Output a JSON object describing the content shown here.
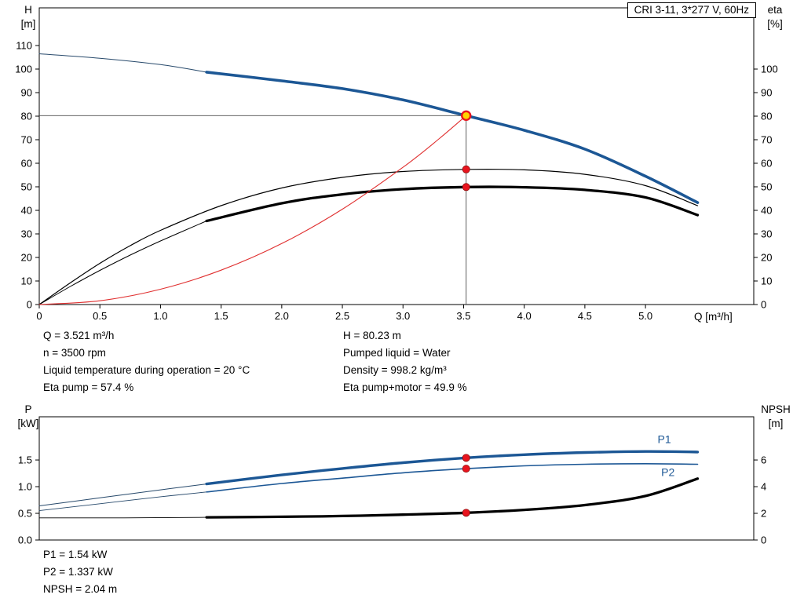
{
  "title_box": "CRI 3-11, 3*277 V, 60Hz",
  "annotations": {
    "top_left": [
      "Q = 3.521 m³/h",
      "n = 3500 rpm",
      "Liquid temperature during operation = 20 °C",
      "Eta pump = 57.4 %"
    ],
    "top_right": [
      "H = 80.23 m",
      "Pumped liquid = Water",
      "Density = 998.2 kg/m³",
      "Eta pump+motor = 49.9 %"
    ],
    "bottom": [
      "P1 = 1.54 kW",
      "P2 = 1.337 kW",
      "NPSH = 2.04 m"
    ]
  },
  "colors": {
    "curve_blue": "#1c5795",
    "curve_black": "#000000",
    "system_red": "#e03030",
    "marker_red": "#e8141e",
    "op_yellow": "#ffd400",
    "ref_line": "#4d4d4d"
  },
  "operating_point": {
    "Q": 3.521,
    "H": 80.23,
    "eta_pump": 57.4,
    "eta_pump_motor": 49.9,
    "P1": 1.54,
    "P2": 1.337,
    "NPSH": 2.04
  },
  "chart_data": [
    {
      "id": "top",
      "type": "line",
      "title": "CRI 3-11, 3*277 V, 60Hz",
      "axes": {
        "x_label": "Q [m³/h]",
        "left_label": [
          "H",
          "[m]"
        ],
        "right_label": [
          "eta",
          "[%]"
        ],
        "xlim": [
          0,
          5.893
        ],
        "left_ylim": [
          0,
          126
        ],
        "right_ylim": [
          0,
          126
        ],
        "xticks": [
          0,
          0.5,
          1,
          1.5,
          2,
          2.5,
          3,
          3.5,
          4,
          4.5,
          5
        ],
        "xtick_labels": [
          "0",
          "0.5",
          "1.0",
          "1.5",
          "2.0",
          "2.5",
          "3.0",
          "3.5",
          "4.0",
          "4.5",
          "5.0"
        ],
        "left_yticks": [
          0,
          10,
          20,
          30,
          40,
          50,
          60,
          70,
          80,
          90,
          100,
          110
        ],
        "left_ytick_labels": [
          "0",
          "10",
          "20",
          "30",
          "40",
          "50",
          "60",
          "70",
          "80",
          "90",
          "100",
          "110"
        ],
        "right_yticks": [
          0,
          10,
          20,
          30,
          40,
          50,
          60,
          70,
          80,
          90,
          100
        ],
        "right_ytick_labels": [
          "0",
          "10",
          "20",
          "30",
          "40",
          "50",
          "60",
          "70",
          "80",
          "90",
          "100"
        ]
      },
      "ref_lines": [
        {
          "dir": "h",
          "y": 80.23,
          "x0": 0,
          "x1": 3.521
        },
        {
          "dir": "v",
          "x": 3.521,
          "y0": 0,
          "y1": 80.23
        }
      ],
      "series": [
        {
          "name": "head-curve-extension",
          "axis": "left",
          "color": "#27496b",
          "width": 1,
          "points": [
            [
              0,
              106.5
            ],
            [
              0.5,
              104.6
            ],
            [
              1.0,
              101.9
            ],
            [
              1.38,
              98.7
            ]
          ]
        },
        {
          "name": "head-curve",
          "axis": "left",
          "color": "#1c5795",
          "width": 3.6,
          "points": [
            [
              1.38,
              98.7
            ],
            [
              2,
              95
            ],
            [
              2.5,
              91.7
            ],
            [
              3,
              86.9
            ],
            [
              3.521,
              80.23
            ],
            [
              4,
              74
            ],
            [
              4.5,
              66
            ],
            [
              5,
              54.5
            ],
            [
              5.43,
              43.3
            ]
          ]
        },
        {
          "name": "eta-pump-curve",
          "axis": "right",
          "color": "#000000",
          "width": 1.2,
          "points": [
            [
              0,
              0
            ],
            [
              0.25,
              9
            ],
            [
              0.5,
              17.5
            ],
            [
              0.75,
              25
            ],
            [
              1,
              31.5
            ],
            [
              1.5,
              42
            ],
            [
              2,
              49.5
            ],
            [
              2.5,
              54
            ],
            [
              3,
              56.5
            ],
            [
              3.521,
              57.4
            ],
            [
              4,
              57.2
            ],
            [
              4.5,
              55.3
            ],
            [
              5,
              50.5
            ],
            [
              5.43,
              42
            ]
          ]
        },
        {
          "name": "eta-pump-motor-extension",
          "axis": "right",
          "color": "#000000",
          "width": 1,
          "points": [
            [
              0,
              0
            ],
            [
              0.25,
              7.5
            ],
            [
              0.5,
              14.5
            ],
            [
              0.75,
              21
            ],
            [
              1,
              27
            ],
            [
              1.38,
              35.5
            ]
          ]
        },
        {
          "name": "eta-pump-motor-curve",
          "axis": "right",
          "color": "#000000",
          "width": 3.3,
          "points": [
            [
              1.38,
              35.5
            ],
            [
              2,
              43
            ],
            [
              2.5,
              46.8
            ],
            [
              3,
              49
            ],
            [
              3.521,
              49.9
            ],
            [
              4,
              49.8
            ],
            [
              4.5,
              48.7
            ],
            [
              5,
              45.5
            ],
            [
              5.43,
              38
            ]
          ]
        },
        {
          "name": "system-curve",
          "axis": "left",
          "color": "#e03030",
          "width": 1.1,
          "points": [
            [
              0,
              0
            ],
            [
              0.5,
              1.6
            ],
            [
              1,
              6.5
            ],
            [
              1.5,
              14.6
            ],
            [
              2,
              25.9
            ],
            [
              2.5,
              40.5
            ],
            [
              3,
              58.3
            ],
            [
              3.3,
              70.5
            ],
            [
              3.521,
              80.23
            ]
          ]
        }
      ],
      "markers": [
        {
          "x": 3.521,
          "y": 80.23,
          "axis": "left",
          "style": "op",
          "fill": "#ffd400",
          "stroke": "#e8141e"
        },
        {
          "x": 3.521,
          "y": 57.4,
          "axis": "right",
          "style": "dot",
          "fill": "#e8141e",
          "stroke": "#8f0f0f"
        },
        {
          "x": 3.521,
          "y": 49.9,
          "axis": "right",
          "style": "dot",
          "fill": "#e8141e",
          "stroke": "#8f0f0f"
        }
      ],
      "labels": []
    },
    {
      "id": "bottom",
      "type": "line",
      "title": "",
      "axes": {
        "x_label": "",
        "left_label": [
          "P",
          "[kW]"
        ],
        "right_label": [
          "NPSH",
          "[m]"
        ],
        "xlim": [
          0,
          5.893
        ],
        "left_ylim": [
          0,
          2.31
        ],
        "right_ylim": [
          0,
          9.24
        ],
        "xticks": [],
        "xtick_labels": [],
        "left_yticks": [
          0,
          0.5,
          1,
          1.5
        ],
        "left_ytick_labels": [
          "0.0",
          "0.5",
          "1.0",
          "1.5"
        ],
        "right_yticks": [
          0,
          2,
          4,
          6
        ],
        "right_ytick_labels": [
          "0",
          "2",
          "4",
          "6"
        ]
      },
      "ref_lines": [],
      "series": [
        {
          "name": "p1-curve-extension",
          "axis": "left",
          "color": "#27496b",
          "width": 1,
          "points": [
            [
              0,
              0.64
            ],
            [
              0.5,
              0.79
            ],
            [
              1,
              0.94
            ],
            [
              1.38,
              1.05
            ]
          ]
        },
        {
          "name": "p1-curve",
          "axis": "left",
          "color": "#1c5795",
          "width": 3.4,
          "points": [
            [
              1.38,
              1.05
            ],
            [
              2,
              1.22
            ],
            [
              2.5,
              1.34
            ],
            [
              3,
              1.45
            ],
            [
              3.521,
              1.54
            ],
            [
              4,
              1.6
            ],
            [
              4.5,
              1.64
            ],
            [
              5,
              1.66
            ],
            [
              5.43,
              1.65
            ]
          ]
        },
        {
          "name": "p2-curve-extension",
          "axis": "left",
          "color": "#27496b",
          "width": 0.9,
          "points": [
            [
              0,
              0.55
            ],
            [
              0.5,
              0.68
            ],
            [
              1,
              0.81
            ],
            [
              1.38,
              0.9
            ]
          ]
        },
        {
          "name": "p2-curve",
          "axis": "left",
          "color": "#1c5795",
          "width": 1.6,
          "points": [
            [
              1.38,
              0.9
            ],
            [
              2,
              1.06
            ],
            [
              2.5,
              1.16
            ],
            [
              3,
              1.26
            ],
            [
              3.521,
              1.337
            ],
            [
              4,
              1.39
            ],
            [
              4.5,
              1.42
            ],
            [
              5,
              1.43
            ],
            [
              5.43,
              1.42
            ]
          ]
        },
        {
          "name": "npsh-curve-extension",
          "axis": "right",
          "color": "#000000",
          "width": 0.9,
          "points": [
            [
              0,
              1.66
            ],
            [
              0.7,
              1.66
            ],
            [
              1.38,
              1.7
            ]
          ]
        },
        {
          "name": "npsh-curve",
          "axis": "right",
          "color": "#000000",
          "width": 3.3,
          "points": [
            [
              1.38,
              1.7
            ],
            [
              2,
              1.74
            ],
            [
              2.5,
              1.8
            ],
            [
              3,
              1.9
            ],
            [
              3.521,
              2.04
            ],
            [
              4,
              2.26
            ],
            [
              4.5,
              2.62
            ],
            [
              5,
              3.3
            ],
            [
              5.43,
              4.6
            ]
          ]
        }
      ],
      "markers": [
        {
          "x": 3.521,
          "y": 1.54,
          "axis": "left",
          "style": "dot",
          "fill": "#e8141e",
          "stroke": "#8f0f0f"
        },
        {
          "x": 3.521,
          "y": 1.337,
          "axis": "left",
          "style": "dot",
          "fill": "#e8141e",
          "stroke": "#8f0f0f"
        },
        {
          "x": 3.521,
          "y": 2.04,
          "axis": "right",
          "style": "dot",
          "fill": "#e8141e",
          "stroke": "#8f0f0f"
        }
      ],
      "labels": [
        {
          "text": "P1",
          "x": 5.1,
          "y": 1.82,
          "axis": "left",
          "color": "#1c5795"
        },
        {
          "text": "P2",
          "x": 5.13,
          "y": 1.2,
          "axis": "left",
          "color": "#1c5795"
        }
      ]
    }
  ]
}
